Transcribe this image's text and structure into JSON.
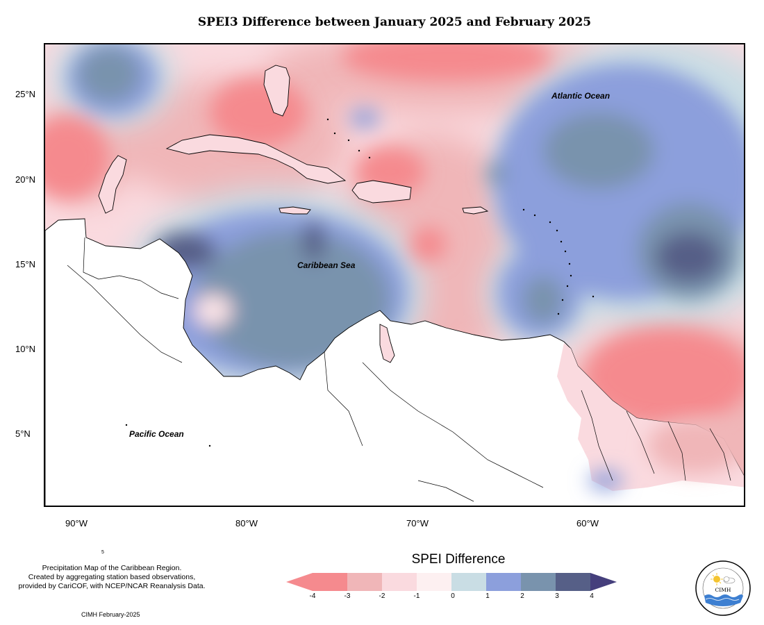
{
  "title": "SPEI3 Difference between January 2025 and February 2025",
  "latitude_labels": [
    "25°N",
    "20°N",
    "15°N",
    "10°N",
    "5°N"
  ],
  "longitude_labels": [
    "90°W",
    "80°W",
    "70°W",
    "60°W"
  ],
  "ocean_labels": {
    "atlantic": "Atlantic Ocean",
    "caribbean": "Caribbean Sea",
    "pacific": "Pacific Ocean"
  },
  "credit": {
    "line1": "Precipitation Map of the Caribbean Region.",
    "line2": "Created by aggregating station based observations,",
    "line3": "provided by CariCOF, with NCEP/NCAR Reanalysis Data."
  },
  "stamp": "CIMH February-2025",
  "stray_mark": "5",
  "legend": {
    "title": "SPEI Difference",
    "ticks": [
      "-4",
      "-3",
      "-2",
      "-1",
      "0",
      "1",
      "2",
      "3",
      "4"
    ],
    "colors": [
      "#f58a8e",
      "#f0b6b8",
      "#fadadf",
      "#fdf0f1",
      "#c9dde4",
      "#8c9fdc",
      "#7993ad",
      "#565f87",
      "#453f7c"
    ]
  },
  "logo": {
    "name": "Caribbean Institute for Meteorology and Hydrology",
    "short": "CIMH",
    "icon": "sun-cloud-icon"
  }
}
